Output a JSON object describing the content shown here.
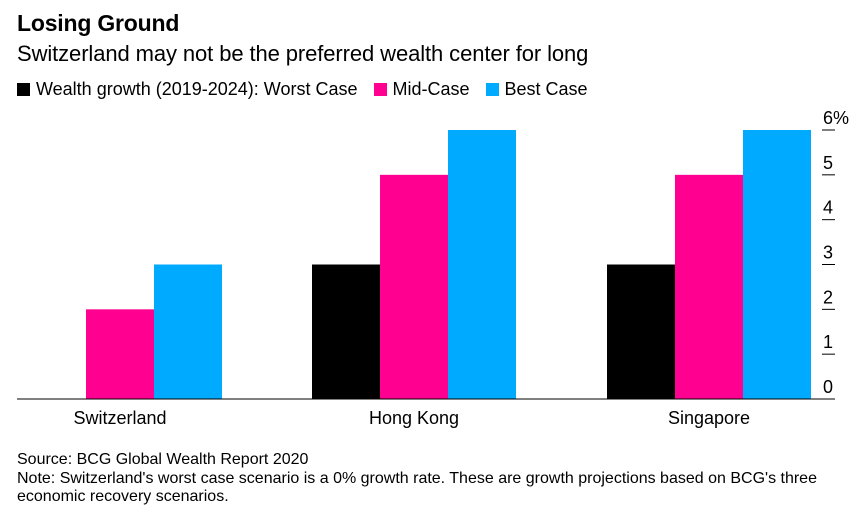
{
  "title": "Losing Ground",
  "subtitle": "Switzerland may not be the preferred wealth center for long",
  "legend": [
    {
      "label": "Wealth growth (2019-2024): Worst Case",
      "color": "#000000"
    },
    {
      "label": "Mid-Case",
      "color": "#ff0090"
    },
    {
      "label": "Best Case",
      "color": "#00aaff"
    }
  ],
  "chart_data": {
    "type": "bar",
    "title": "Losing Ground",
    "subtitle": "Switzerland may not be the preferred wealth center for long",
    "categories": [
      "Switzerland",
      "Hong Kong",
      "Singapore"
    ],
    "series": [
      {
        "name": "Wealth growth (2019-2024): Worst Case",
        "values": [
          0,
          3,
          3
        ],
        "color": "#000000"
      },
      {
        "name": "Mid-Case",
        "values": [
          2,
          5,
          5
        ],
        "color": "#ff0090"
      },
      {
        "name": "Best Case",
        "values": [
          3,
          6,
          6
        ],
        "color": "#00aaff"
      }
    ],
    "ylim": [
      0,
      6
    ],
    "yticks": [
      "0",
      "1",
      "2",
      "3",
      "4",
      "5",
      "6%"
    ],
    "xlabel": "",
    "ylabel": "",
    "legend_position": "top-left",
    "y_axis_side": "right"
  },
  "footer": {
    "source": "Source: BCG Global Wealth Report 2020",
    "note": "Note: Switzerland's worst case scenario is a 0% growth rate. These are growth projections based on BCG's three economic recovery scenarios."
  }
}
